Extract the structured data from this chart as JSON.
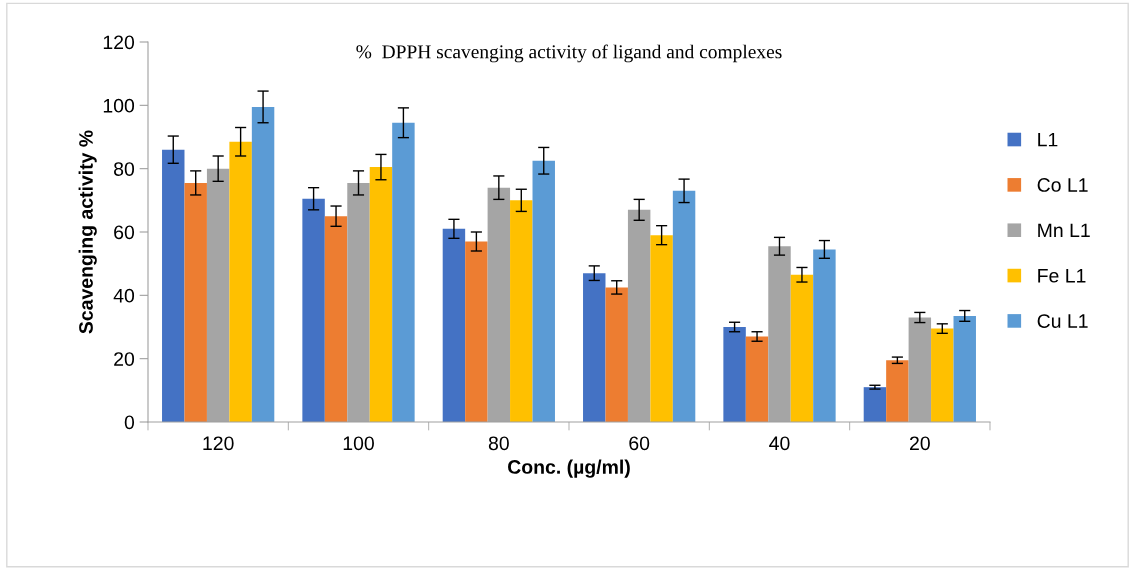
{
  "chart_data": {
    "type": "bar",
    "title": "%  DPPH scavenging activity of ligand and complexes",
    "xlabel": "Conc. (µg/ml)",
    "ylabel": "Scavenging activity %",
    "categories": [
      "120",
      "100",
      "80",
      "60",
      "40",
      "20"
    ],
    "series": [
      {
        "name": "L1",
        "color": "#4472c4",
        "values": [
          86,
          70.5,
          61,
          47,
          30,
          11
        ],
        "errors": [
          4.3,
          3.5,
          3,
          2.3,
          1.5,
          0.6
        ]
      },
      {
        "name": "Co L1",
        "color": "#ed7d31",
        "values": [
          75.5,
          65,
          57,
          42.5,
          27,
          19.5
        ],
        "errors": [
          3.8,
          3.2,
          3,
          2.1,
          1.5,
          1
        ]
      },
      {
        "name": "Mn L1",
        "color": "#a5a5a5",
        "values": [
          80,
          75.5,
          74,
          67,
          55.5,
          33
        ],
        "errors": [
          4,
          3.8,
          3.7,
          3.3,
          2.8,
          1.6
        ]
      },
      {
        "name": "Fe L1",
        "color": "#ffc000",
        "values": [
          88.5,
          80.5,
          70,
          59,
          46.5,
          29.5
        ],
        "errors": [
          4.5,
          4,
          3.5,
          3,
          2.3,
          1.5
        ]
      },
      {
        "name": "Cu L1",
        "color": "#5b9bd5",
        "values": [
          99.5,
          94.5,
          82.5,
          73,
          54.5,
          33.5
        ],
        "errors": [
          5,
          4.7,
          4.2,
          3.7,
          2.8,
          1.7
        ]
      }
    ],
    "ylim": [
      0,
      120
    ],
    "yticks": [
      0,
      20,
      40,
      60,
      80,
      100,
      120
    ],
    "grid": false,
    "legend": "right"
  }
}
